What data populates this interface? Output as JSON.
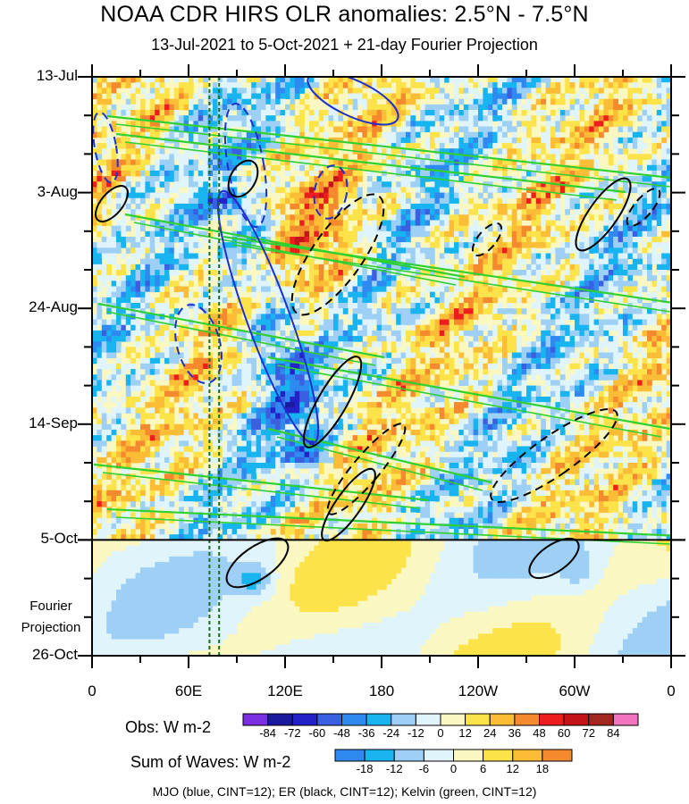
{
  "chart_data": {
    "type": "heatmap",
    "title": "NOAA CDR HIRS OLR anomalies: 2.5°N - 7.5°N",
    "subtitle": "13-Jul-2021 to 5-Oct-2021 + 21-day Fourier Projection",
    "y_tick_labels": [
      "13-Jul",
      "3-Aug",
      "24-Aug",
      "14-Sep",
      "5-Oct",
      "26-Oct"
    ],
    "y_tick_days": [
      0,
      21,
      42,
      63,
      84,
      105
    ],
    "projection_label": [
      "Fourier",
      "Projection"
    ],
    "projection_start_day": 84,
    "x_tick_labels": [
      "0",
      "60E",
      "120E",
      "180",
      "120W",
      "60W",
      "0"
    ],
    "x_tick_lons": [
      0,
      60,
      120,
      180,
      240,
      300,
      360
    ],
    "xlim": [
      0,
      360
    ],
    "ylim": [
      0,
      105
    ],
    "reference_lines_lon": [
      73,
      79
    ],
    "obs_colorbar": {
      "title": "Obs: W m-2",
      "levels": [
        -84,
        -72,
        -60,
        -48,
        -36,
        -24,
        -12,
        0,
        12,
        24,
        36,
        48,
        60,
        72,
        84
      ],
      "colors": [
        "#7b2fe0",
        "#1a1a9e",
        "#2222c8",
        "#3a5fe0",
        "#2e8af0",
        "#18b4f0",
        "#9ed0f5",
        "#dff4fb",
        "#fbf7c0",
        "#fde34a",
        "#fbbd36",
        "#f5892e",
        "#ee1d1d",
        "#c4141a",
        "#a1271f",
        "#f373c0"
      ]
    },
    "waves_colorbar": {
      "title": "Sum of Waves: W m-2",
      "levels": [
        -18,
        -12,
        -6,
        0,
        6,
        12,
        18
      ],
      "colors": [
        "#2e8af0",
        "#18b4f0",
        "#9ed0f5",
        "#dff4fb",
        "#fbf7c0",
        "#fde34a",
        "#fbbd36",
        "#f5892e"
      ]
    },
    "footer": "MJO (blue, CINT=12); ER (black, CINT=12); Kelvin (green, CINT=12)",
    "contour_colors": {
      "mjo": "#1e2fd0",
      "er": "#000000",
      "kelvin": "#2fd02f"
    }
  }
}
